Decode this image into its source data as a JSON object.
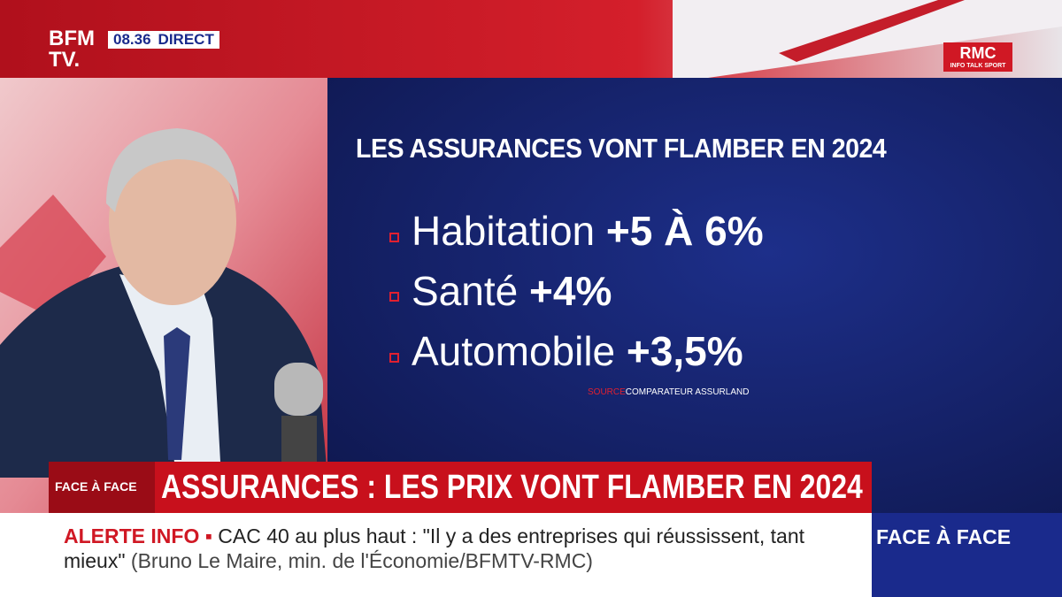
{
  "header": {
    "logo_top": "BFM",
    "logo_bottom": "TV.",
    "time": "08.36",
    "live": "DIRECT"
  },
  "partner": {
    "name": "RMC",
    "tagline": "INFO TALK SPORT"
  },
  "graphic": {
    "title": "LES ASSURANCES VONT FLAMBER EN 2024",
    "items": [
      {
        "label": "Habitation",
        "value": "+5 À 6%"
      },
      {
        "label": "Santé",
        "value": "+4%"
      },
      {
        "label": "Automobile",
        "value": "+3,5%"
      }
    ],
    "source_label": "SOURCE",
    "source": "COMPARATEUR ASSURLAND"
  },
  "banner": {
    "show": "FACE À FACE",
    "headline": "ASSURANCES : LES PRIX VONT FLAMBER EN 2024"
  },
  "ticker": {
    "label": "ALERTE INFO ▪",
    "text": "CAC 40 au plus haut : \"Il y a des entreprises qui réussissent, tant mieux\"",
    "attribution": "(Bruno Le Maire, min. de l'Économie/BFMTV-RMC)"
  },
  "program": "FACE À FACE"
}
